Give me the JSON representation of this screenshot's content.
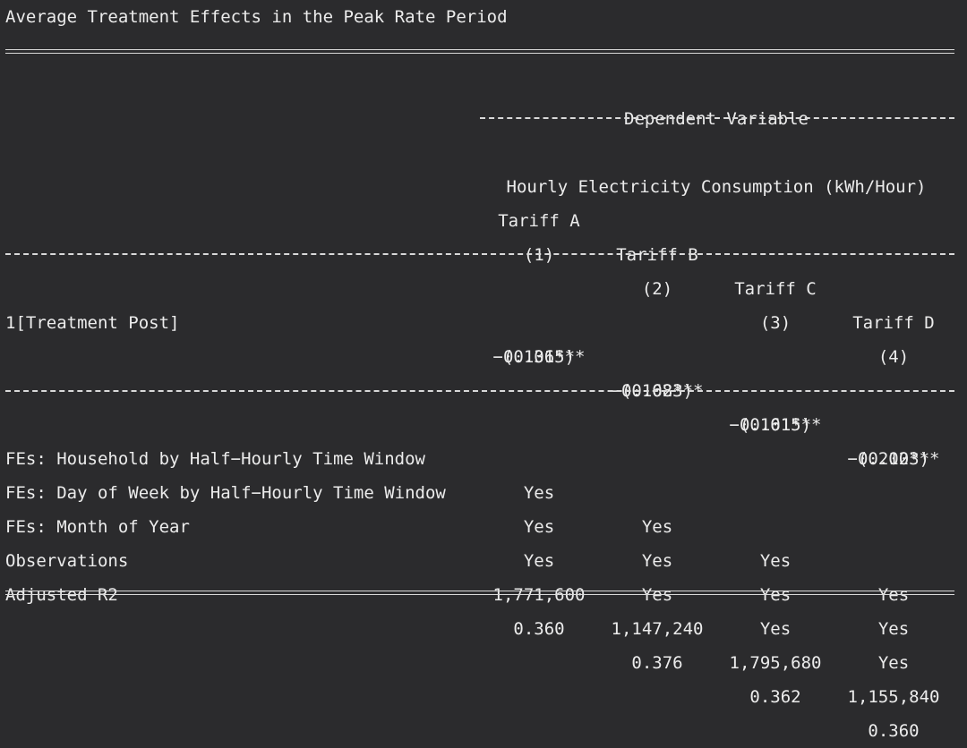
{
  "title": "Average Treatment Effects in the Peak Rate Period",
  "header": {
    "dependent_variable": "Dependent Variable",
    "dv_name": "Hourly Electricity Consumption (kWh/Hour)",
    "columns": [
      "Tariff A",
      "Tariff B",
      "Tariff C",
      "Tariff D"
    ],
    "numbers": [
      "(1)",
      "(2)",
      "(3)",
      "(4)"
    ]
  },
  "coefficients": [
    {
      "name": "1[Treatment Post]",
      "estimates": [
        "−0.136***",
        "−0.168***",
        "−0.161***",
        "−0.210***"
      ],
      "std_errors": [
        "(0.015)",
        "(0.023)",
        "(0.015)",
        "(0.023)"
      ]
    }
  ],
  "stats": [
    {
      "label": "FEs: Household by Half−Hourly Time Window",
      "values": [
        "Yes",
        "Yes",
        "Yes",
        "Yes"
      ]
    },
    {
      "label": "FEs: Day of Week by Half−Hourly Time Window",
      "values": [
        "Yes",
        "Yes",
        "Yes",
        "Yes"
      ]
    },
    {
      "label": "FEs: Month of Year",
      "values": [
        "Yes",
        "Yes",
        "Yes",
        "Yes"
      ]
    },
    {
      "label": "Observations",
      "values": [
        "1,771,600",
        "1,147,240",
        "1,795,680",
        "1,155,840"
      ]
    },
    {
      "label": "Adjusted R2",
      "values": [
        "0.360",
        "0.376",
        "0.362",
        "0.360"
      ]
    }
  ]
}
